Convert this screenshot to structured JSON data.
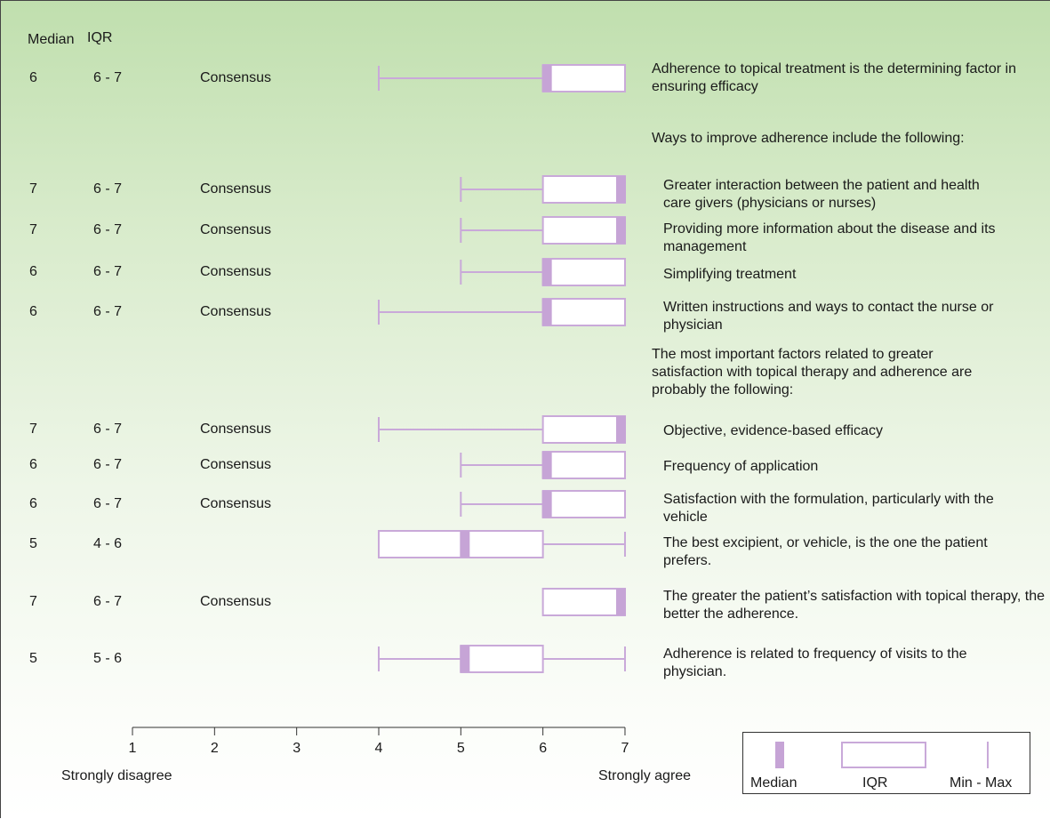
{
  "colors": {
    "box_stroke": "#c9a9d9",
    "median_fill": "#c6a4d6",
    "text": "#1a1a1a"
  },
  "headers": {
    "median": "Median",
    "iqr": "IQR"
  },
  "chart_data": {
    "type": "boxplot",
    "xlim": [
      1,
      7
    ],
    "x_ticks": [
      "1",
      "2",
      "3",
      "4",
      "5",
      "6",
      "7"
    ],
    "x_left_label": "Strongly disagree",
    "x_right_label": "Strongly agree",
    "legend": [
      "Median",
      "IQR",
      "Min - Max"
    ],
    "sections": [
      "Ways to improve adherence include the following:",
      "The most important factors related to greater satisfaction with topical therapy and adherence are probably the following:"
    ],
    "rows": [
      {
        "median": 6,
        "q1": 6,
        "q3": 7,
        "min": 4,
        "max": 7,
        "median_text": "6",
        "iqr_text": "6 - 7",
        "consensus": "Consensus",
        "statement": "Adherence to topical treatment is the determining factor in ensuring efficacy"
      },
      {
        "median": 7,
        "q1": 6,
        "q3": 7,
        "min": 5,
        "max": 7,
        "median_text": "7",
        "iqr_text": "6 - 7",
        "consensus": "Consensus",
        "statement": "Greater interaction between the patient and health care givers (physicians or nurses)"
      },
      {
        "median": 7,
        "q1": 6,
        "q3": 7,
        "min": 5,
        "max": 7,
        "median_text": "7",
        "iqr_text": "6 - 7",
        "consensus": "Consensus",
        "statement": "Providing more information about the disease and its management"
      },
      {
        "median": 6,
        "q1": 6,
        "q3": 7,
        "min": 5,
        "max": 7,
        "median_text": "6",
        "iqr_text": "6 - 7",
        "consensus": "Consensus",
        "statement": "Simplifying treatment"
      },
      {
        "median": 6,
        "q1": 6,
        "q3": 7,
        "min": 4,
        "max": 7,
        "median_text": "6",
        "iqr_text": "6 - 7",
        "consensus": "Consensus",
        "statement": "Written instructions and ways to contact the nurse or physician"
      },
      {
        "median": 7,
        "q1": 6,
        "q3": 7,
        "min": 4,
        "max": 7,
        "median_text": "7",
        "iqr_text": "6 - 7",
        "consensus": "Consensus",
        "statement": "Objective, evidence-based efficacy"
      },
      {
        "median": 6,
        "q1": 6,
        "q3": 7,
        "min": 5,
        "max": 7,
        "median_text": "6",
        "iqr_text": "6 - 7",
        "consensus": "Consensus",
        "statement": "Frequency of application"
      },
      {
        "median": 6,
        "q1": 6,
        "q3": 7,
        "min": 5,
        "max": 7,
        "median_text": "6",
        "iqr_text": "6 - 7",
        "consensus": "Consensus",
        "statement": "Satisfaction with the formulation, particularly with the vehicle"
      },
      {
        "median": 5,
        "q1": 4,
        "q3": 6,
        "min": 4,
        "max": 7,
        "median_text": "5",
        "iqr_text": "4 - 6",
        "consensus": "",
        "statement": "The best excipient, or vehicle, is the one the patient prefers."
      },
      {
        "median": 7,
        "q1": 6,
        "q3": 7,
        "min": 6,
        "max": 7,
        "median_text": "7",
        "iqr_text": "6 - 7",
        "consensus": "Consensus",
        "statement": "The greater the patient’s satisfaction with topical therapy, the better the adherence."
      },
      {
        "median": 5,
        "q1": 5,
        "q3": 6,
        "min": 4,
        "max": 7,
        "median_text": "5",
        "iqr_text": "5 - 6",
        "consensus": "",
        "statement": "Adherence is related to frequency of visits to the physician."
      }
    ]
  }
}
